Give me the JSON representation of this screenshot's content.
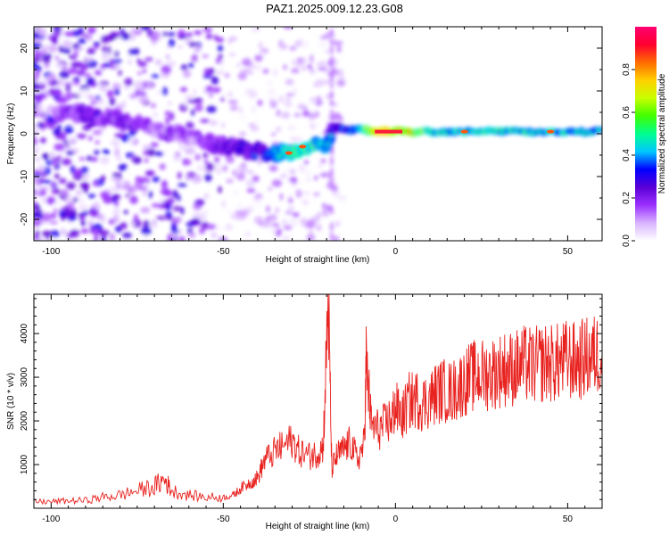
{
  "title": "PAZ1.2025.009.12.23.G08",
  "colors": {
    "snr_line": "#e8221f",
    "ridge_core": "#ff1a3c",
    "axis": "#000000"
  },
  "chart_data": [
    {
      "type": "heatmap",
      "name": "spectrogram",
      "xlabel": "Height of straight line (km)",
      "ylabel": "Frequency (Hz)",
      "xlim": [
        -105,
        60
      ],
      "ylim": [
        -25,
        25
      ],
      "xticks": [
        -100,
        -50,
        0,
        50
      ],
      "yticks": [
        -20,
        -10,
        0,
        10,
        20
      ],
      "colorbar": {
        "label": "Normalized spectral amplitude",
        "range": [
          0,
          1
        ],
        "ticks": [
          0.0,
          0.2,
          0.4,
          0.6,
          0.8
        ],
        "tick_labels": [
          "0.0",
          "0.2",
          "0.4",
          "0.6",
          "0.8"
        ],
        "colormap": [
          "#ffffff",
          "#d9b3ff",
          "#9b30ff",
          "#5a00d6",
          "#0000ff",
          "#00c8ff",
          "#00ff90",
          "#40ff00",
          "#c8ff00",
          "#ffd000",
          "#ff6a00",
          "#ff0030",
          "#ff0070"
        ]
      },
      "ridge": {
        "x": [
          -100,
          -95,
          -90,
          -85,
          -80,
          -75,
          -70,
          -65,
          -60,
          -55,
          -50,
          -45,
          -40,
          -35,
          -30,
          -25,
          -20,
          -18,
          -15,
          -10,
          -5,
          0,
          10,
          20,
          30,
          40,
          50,
          60
        ],
        "freq": [
          5,
          5,
          4.5,
          4,
          3.5,
          2.5,
          1,
          0,
          -1,
          -2,
          -3,
          -3.5,
          -4,
          -4.5,
          -4,
          -3,
          -3,
          2,
          1,
          1,
          0.5,
          0.5,
          0.5,
          0.5,
          0.5,
          0.5,
          0.5,
          0.5
        ],
        "amplitude": [
          0.1,
          0.2,
          0.25,
          0.25,
          0.2,
          0.25,
          0.15,
          0.2,
          0.15,
          0.2,
          0.25,
          0.3,
          0.3,
          0.45,
          0.6,
          0.6,
          0.5,
          0.3,
          0.4,
          0.5,
          0.95,
          0.9,
          0.55,
          0.5,
          0.55,
          0.5,
          0.5,
          0.5
        ]
      }
    },
    {
      "type": "line",
      "name": "snr",
      "xlabel": "Height of straight line (km)",
      "ylabel": "SNR (10 * v/v)",
      "xlim": [
        -105,
        60
      ],
      "ylim": [
        0,
        4900
      ],
      "xticks": [
        -100,
        -50,
        0,
        50
      ],
      "yticks": [
        1000,
        2000,
        3000,
        4000
      ],
      "series": [
        {
          "x": [
            -105,
            -100,
            -95,
            -90,
            -85,
            -80,
            -75,
            -70,
            -67,
            -65,
            -60,
            -55,
            -50,
            -47,
            -45,
            -42,
            -40,
            -38,
            -35,
            -33,
            -30,
            -28,
            -25,
            -23,
            -21,
            -19.5,
            -18.5,
            -17,
            -15,
            -13,
            -11,
            -9,
            -8.5,
            -7,
            -5,
            -3,
            -1,
            0,
            2,
            4,
            6,
            8,
            10,
            12,
            14,
            16,
            18,
            20,
            22,
            24,
            26,
            28,
            30,
            32,
            34,
            36,
            38,
            40,
            42,
            44,
            46,
            48,
            50,
            52,
            54,
            56,
            58,
            60
          ],
          "values": [
            150,
            150,
            170,
            180,
            250,
            300,
            400,
            500,
            650,
            400,
            300,
            250,
            250,
            300,
            450,
            600,
            700,
            1100,
            1300,
            1400,
            1550,
            1300,
            1200,
            1250,
            1400,
            4800,
            900,
            1200,
            1350,
            1500,
            1100,
            1500,
            3400,
            1900,
            1800,
            1900,
            2100,
            2300,
            2100,
            2450,
            2500,
            2400,
            2500,
            2650,
            2700,
            2650,
            2750,
            2900,
            3000,
            3050,
            3050,
            3100,
            3150,
            3200,
            3200,
            3250,
            3300,
            3250,
            3300,
            3350,
            3300,
            3350,
            3400,
            3350,
            3400,
            3450,
            3500,
            3600
          ]
        }
      ]
    }
  ]
}
